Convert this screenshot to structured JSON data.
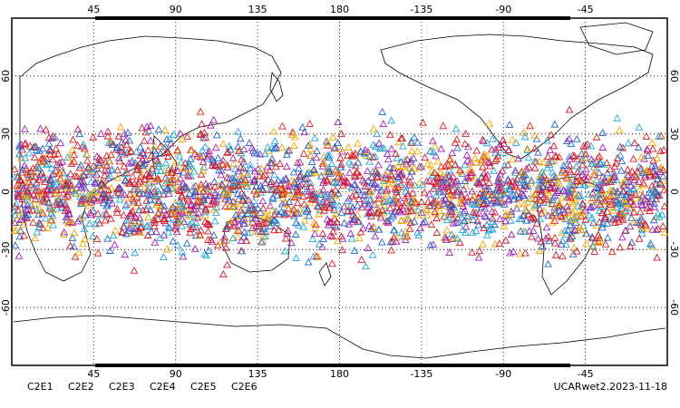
{
  "map": {
    "lon_range": [
      0,
      360
    ],
    "lat_range": [
      -90,
      90
    ],
    "lon_ticks": [
      "45",
      "90",
      "135",
      "180",
      "-135",
      "-90",
      "-45"
    ],
    "lat_ticks": [
      "60",
      "30",
      "0",
      "-30",
      "-60"
    ],
    "grid": "dotted",
    "marker": "triangle",
    "lat_band": [
      -45,
      45
    ]
  },
  "legend": [
    {
      "label": "C2E1",
      "color": "#22a6d8"
    },
    {
      "label": "C2E2",
      "color": "#9b24b8"
    },
    {
      "label": "C2E3",
      "color": "#1f63c8"
    },
    {
      "label": "C2E4",
      "color": "#d0182c"
    },
    {
      "label": "C2E5",
      "color": "#e31e1e"
    },
    {
      "label": "C2E6",
      "color": "#f0a800"
    }
  ],
  "stamp": "UCARwet2.2023-11-18"
}
